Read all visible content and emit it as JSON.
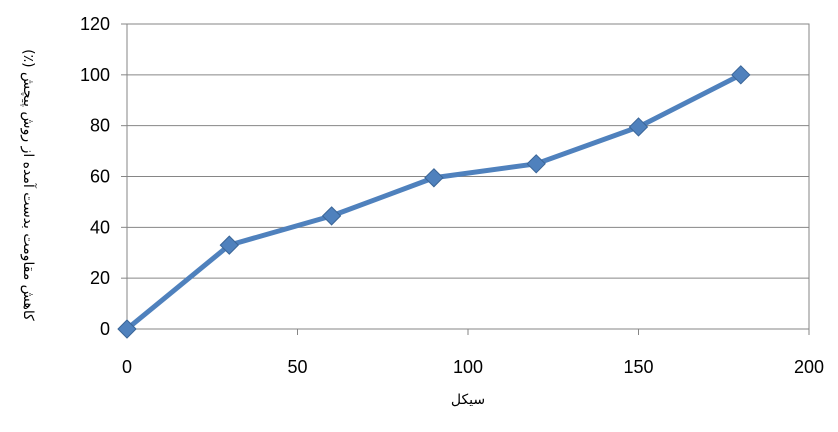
{
  "chart_data": {
    "type": "line",
    "xlabel": "سیکل",
    "ylabel": "کاهش مقاومت بدست آمده از روش پیچش (٪)",
    "xlim": [
      0,
      200
    ],
    "ylim": [
      0,
      120
    ],
    "x_ticks": [
      0,
      50,
      100,
      150,
      200
    ],
    "y_ticks": [
      0,
      20,
      40,
      60,
      80,
      100,
      120
    ],
    "grid": "horizontal",
    "legend": "none",
    "marker": "diamond",
    "colors": {
      "series": "#4F81BD",
      "grid": "#868686"
    },
    "series": [
      {
        "x": [
          0,
          30,
          60,
          90,
          120,
          150,
          180
        ],
        "values": [
          0,
          33,
          44.5,
          59.5,
          65,
          79.5,
          100
        ]
      }
    ]
  }
}
